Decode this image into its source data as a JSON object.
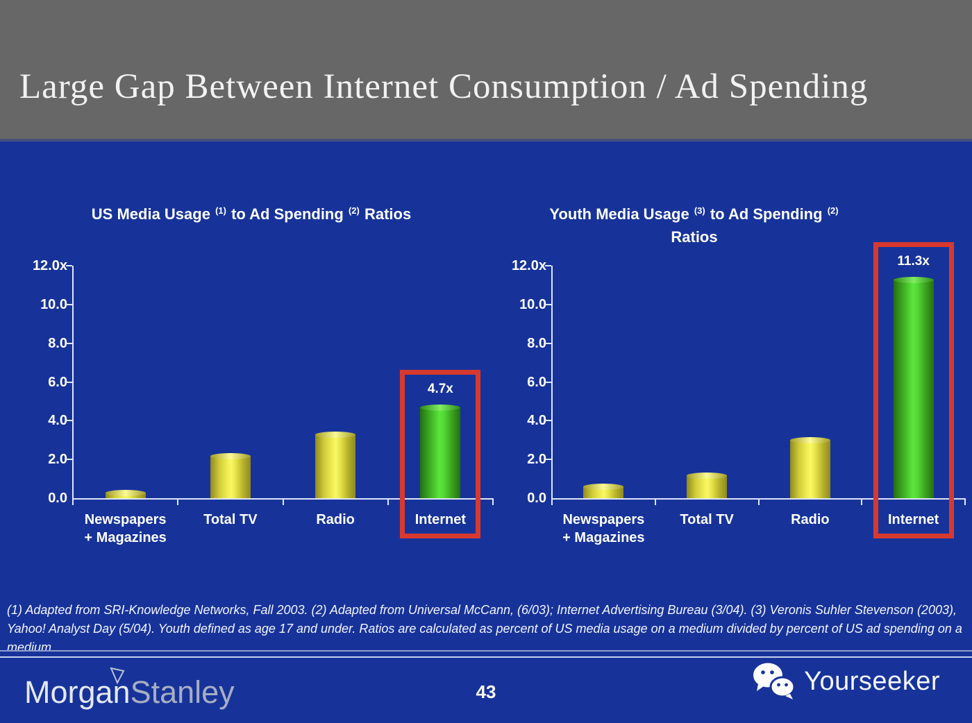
{
  "header": {
    "title": "Large Gap Between Internet Consumption / Ad Spending"
  },
  "colors": {
    "background_blue": "#17339a",
    "header_gray": "#666766",
    "bar_yellow": "#f4f257",
    "bar_green": "#5ce53c",
    "highlight_red": "#d8392e",
    "axis_line": "#dfe6f8",
    "text_white": "#ffffff"
  },
  "chart_data": [
    {
      "type": "bar",
      "title": "US Media Usage (1) to Ad Spending (2) Ratios",
      "title_parts": {
        "pre": "US Media Usage",
        "sup1": "(1)",
        "mid": "to Ad Spending",
        "sup2": "(2)",
        "post": "Ratios"
      },
      "categories": [
        {
          "id": "newspapers-magazines",
          "lines": [
            "Newspapers",
            "+ Magazines"
          ]
        },
        {
          "id": "total-tv",
          "lines": [
            "Total TV"
          ]
        },
        {
          "id": "radio",
          "lines": [
            "Radio"
          ]
        },
        {
          "id": "internet",
          "lines": [
            "Internet"
          ]
        }
      ],
      "values": [
        0.3,
        2.2,
        3.3,
        4.7
      ],
      "bar_colors": [
        "yellow",
        "yellow",
        "yellow",
        "green"
      ],
      "value_labels": [
        null,
        null,
        null,
        "4.7x"
      ],
      "highlighted_index": 3,
      "highlight_color": "#d8392e",
      "ylim": [
        0,
        12
      ],
      "yticks": [
        {
          "v": 0,
          "label": "0.0"
        },
        {
          "v": 2,
          "label": "2.0"
        },
        {
          "v": 4,
          "label": "4.0"
        },
        {
          "v": 6,
          "label": "6.0"
        },
        {
          "v": 8,
          "label": "8.0"
        },
        {
          "v": 10,
          "label": "10.0"
        },
        {
          "v": 12,
          "label": "12.0x"
        }
      ],
      "grid": false,
      "legend": null
    },
    {
      "type": "bar",
      "title": "Youth Media Usage (3) to Ad Spending (2) Ratios",
      "title_parts": {
        "pre": "Youth Media Usage",
        "sup1": "(3)",
        "mid": "to Ad Spending",
        "sup2": "(2)",
        "post": "",
        "line2": "Ratios"
      },
      "categories": [
        {
          "id": "newspapers-magazines",
          "lines": [
            "Newspapers",
            "+ Magazines"
          ]
        },
        {
          "id": "total-tv",
          "lines": [
            "Total TV"
          ]
        },
        {
          "id": "radio",
          "lines": [
            "Radio"
          ]
        },
        {
          "id": "internet",
          "lines": [
            "Internet"
          ]
        }
      ],
      "values": [
        0.6,
        1.2,
        3.0,
        11.3
      ],
      "bar_colors": [
        "yellow",
        "yellow",
        "yellow",
        "green"
      ],
      "value_labels": [
        null,
        null,
        null,
        "11.3x"
      ],
      "highlighted_index": 3,
      "highlight_color": "#d8392e",
      "ylim": [
        0,
        12
      ],
      "yticks": [
        {
          "v": 0,
          "label": "0.0"
        },
        {
          "v": 2,
          "label": "2.0"
        },
        {
          "v": 4,
          "label": "4.0"
        },
        {
          "v": 6,
          "label": "6.0"
        },
        {
          "v": 8,
          "label": "8.0"
        },
        {
          "v": 10,
          "label": "10.0"
        },
        {
          "v": 12,
          "label": "12.0x"
        }
      ],
      "grid": false,
      "legend": null
    }
  ],
  "footnote": {
    "text": "(1) Adapted from SRI-Knowledge Networks, Fall 2003.  (2) Adapted from Universal McCann, (6/03); Internet Advertising Bureau (3/04). (3) Veronis Suhler Stevenson (2003), Yahoo! Analyst Day (5/04).  Youth defined as age 17 and under.  Ratios are calculated as percent of US media usage on a medium divided by percent of US ad spending on a medium."
  },
  "footer": {
    "brand": {
      "part1": "Morgan",
      "part2": "Stanley"
    },
    "page_number": "43",
    "watermark": {
      "label": "Yourseeker"
    }
  },
  "icons": {
    "brand_icon": "morgan-stanley-flag-icon",
    "watermark_icon": "wechat-chat-bubbles-icon"
  }
}
